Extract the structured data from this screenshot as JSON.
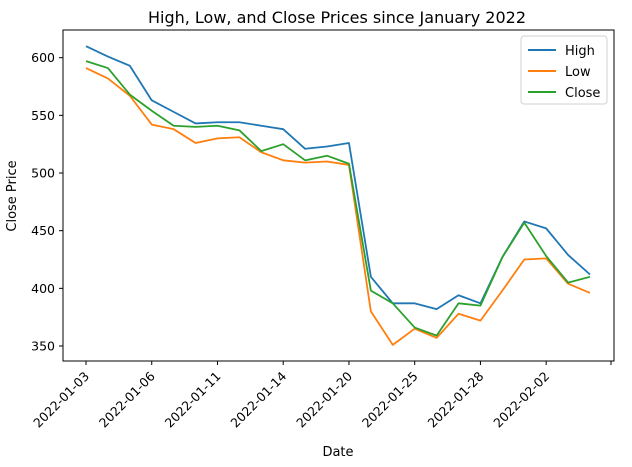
{
  "chart_data": {
    "type": "line",
    "title": "High, Low, and Close Prices since January 2022",
    "xlabel": "Date",
    "ylabel": "Close Price",
    "x": [
      "2022-01-03",
      "2022-01-04",
      "2022-01-05",
      "2022-01-06",
      "2022-01-07",
      "2022-01-10",
      "2022-01-11",
      "2022-01-12",
      "2022-01-13",
      "2022-01-14",
      "2022-01-18",
      "2022-01-19",
      "2022-01-20",
      "2022-01-21",
      "2022-01-24",
      "2022-01-25",
      "2022-01-26",
      "2022-01-27",
      "2022-01-28",
      "2022-01-31",
      "2022-02-01",
      "2022-02-02",
      "2022-02-03",
      "2022-02-04"
    ],
    "xticks": [
      "2022-01-03",
      "2022-01-06",
      "2022-01-11",
      "2022-01-14",
      "2022-01-20",
      "2022-01-25",
      "2022-01-28",
      "2022-02-02"
    ],
    "yticks": [
      350,
      400,
      450,
      500,
      550,
      600
    ],
    "ylim": [
      337,
      624
    ],
    "grid": false,
    "legend_position": "top-right",
    "series": [
      {
        "name": "High",
        "color": "#1f77b4",
        "values": [
          610,
          601,
          593,
          563,
          553,
          543,
          544,
          544,
          541,
          538,
          521,
          523,
          526,
          410,
          387,
          387,
          382,
          394,
          387,
          427,
          458,
          452,
          429,
          412
        ]
      },
      {
        "name": "Low",
        "color": "#ff7f0e",
        "values": [
          591,
          582,
          567,
          542,
          538,
          526,
          530,
          531,
          518,
          511,
          509,
          510,
          507,
          380,
          351,
          365,
          357,
          378,
          372,
          398,
          425,
          426,
          404,
          396
        ]
      },
      {
        "name": "Close",
        "color": "#2ca02c",
        "values": [
          597,
          591,
          568,
          554,
          541,
          540,
          541,
          537,
          519,
          525,
          511,
          515,
          508,
          398,
          387,
          366,
          359,
          387,
          385,
          427,
          457,
          428,
          405,
          410
        ]
      }
    ]
  }
}
